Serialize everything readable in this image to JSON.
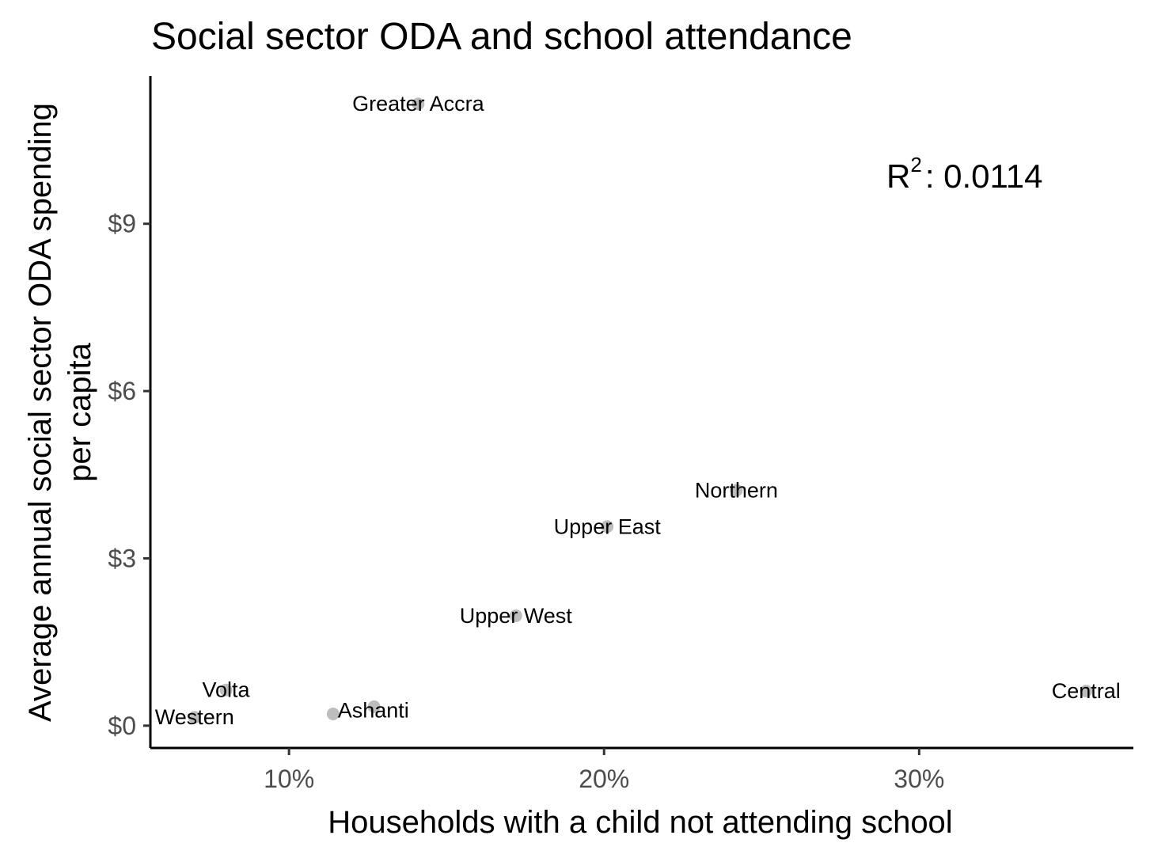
{
  "chart_data": {
    "type": "scatter",
    "title": "Social sector ODA and school attendance",
    "xlabel": "Households with a child not attending school",
    "ylabel_lines": [
      "Average annual social sector ODA spending",
      "per capita"
    ],
    "xlim": [
      0.056,
      0.368
    ],
    "ylim": [
      -0.4,
      11.65
    ],
    "x_ticks": [
      {
        "value": 0.1,
        "label": "10%"
      },
      {
        "value": 0.2,
        "label": "20%"
      },
      {
        "value": 0.3,
        "label": "30%"
      }
    ],
    "y_ticks": [
      {
        "value": 0,
        "label": "$0"
      },
      {
        "value": 3,
        "label": "$3"
      },
      {
        "value": 6,
        "label": "$6"
      },
      {
        "value": 9,
        "label": "$9"
      }
    ],
    "points": [
      {
        "name": "Greater Accra",
        "x": 0.141,
        "y": 11.15
      },
      {
        "name": "Northern",
        "x": 0.242,
        "y": 4.22
      },
      {
        "name": "Upper East",
        "x": 0.201,
        "y": 3.57
      },
      {
        "name": "Upper West",
        "x": 0.172,
        "y": 1.97
      },
      {
        "name": "Volta",
        "x": 0.08,
        "y": 0.64
      },
      {
        "name": "Western",
        "x": 0.07,
        "y": 0.15
      },
      {
        "name": "Ashanti",
        "x": 0.127,
        "y": 0.34
      },
      {
        "name": "Ashanti",
        "x": 0.114,
        "y": 0.21
      },
      {
        "name": "Central",
        "x": 0.353,
        "y": 0.62
      }
    ],
    "annotation": {
      "r2_base": "R",
      "r2_sup": "2",
      "r2_text": ": 0.0114"
    },
    "point_color": "#bdbdbd",
    "grid": false
  }
}
